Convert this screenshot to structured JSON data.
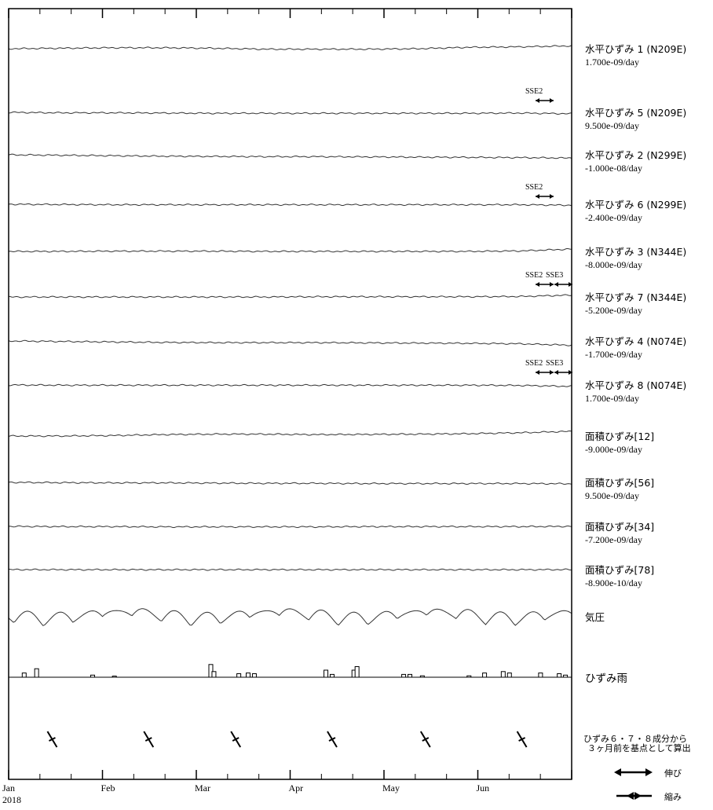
{
  "chart_data": {
    "type": "line",
    "x_axis": {
      "months": [
        "Jan",
        "Feb",
        "Mar",
        "Apr",
        "May",
        "Jun"
      ],
      "year": "2018",
      "range": [
        "2018-01-01",
        "2018-06-30"
      ]
    },
    "series": [
      {
        "name": "水平ひずみ 1 (N209E)",
        "rate": "1.700e-09/day",
        "trend": [
          0,
          0.1,
          0.2,
          0.2,
          0.1,
          -0.1,
          -0.1,
          -0.1,
          0,
          0.3,
          0.4,
          0.6
        ]
      },
      {
        "name": "水平ひずみ 5 (N209E)",
        "rate": "9.500e-09/day",
        "trend": [
          0,
          -0.1,
          -0.1,
          -0.15,
          -0.2,
          -0.2,
          -0.2,
          -0.2,
          -0.2,
          -0.2,
          -0.15,
          -0.3
        ]
      },
      {
        "name": "水平ひずみ 2 (N299E)",
        "rate": "-1.000e-08/day",
        "trend": [
          0,
          -0.1,
          -0.2,
          -0.3,
          -0.35,
          -0.4,
          -0.4,
          -0.45,
          -0.5,
          -0.55,
          -0.6,
          -0.7
        ]
      },
      {
        "name": "水平ひずみ 6 (N299E)",
        "rate": "-2.400e-09/day",
        "trend": [
          0,
          -0.05,
          -0.1,
          -0.1,
          -0.1,
          -0.1,
          -0.1,
          -0.1,
          -0.1,
          -0.1,
          -0.1,
          -0.2
        ]
      },
      {
        "name": "水平ひずみ 3 (N344E)",
        "rate": "-8.000e-09/day",
        "trend": [
          0,
          0,
          0.05,
          0.05,
          0.05,
          0,
          0,
          0,
          0,
          0,
          0.1,
          0.5
        ]
      },
      {
        "name": "水平ひずみ 7 (N344E)",
        "rate": "-5.200e-09/day",
        "trend": [
          0,
          0,
          0,
          0,
          0,
          0,
          0.05,
          0.05,
          0.05,
          0.05,
          0.1,
          0.4
        ]
      },
      {
        "name": "水平ひずみ 4 (N074E)",
        "rate": "-1.700e-09/day",
        "trend": [
          0,
          -0.1,
          -0.2,
          -0.3,
          -0.35,
          -0.35,
          -0.35,
          -0.4,
          -0.45,
          -0.5,
          -0.6,
          -0.9
        ]
      },
      {
        "name": "水平ひずみ 8 (N074E)",
        "rate": "1.700e-09/day",
        "trend": [
          0,
          -0.05,
          -0.05,
          -0.05,
          -0.05,
          -0.05,
          -0.05,
          -0.05,
          -0.05,
          -0.05,
          -0.1,
          -0.3
        ]
      },
      {
        "name": "面積ひずみ[12]",
        "rate": "-9.000e-09/day",
        "trend": [
          0,
          0,
          0.1,
          0.3,
          0.4,
          0.4,
          0.3,
          0.35,
          0.4,
          0.5,
          0.7,
          1.0
        ]
      },
      {
        "name": "面積ひずみ[56]",
        "rate": "9.500e-09/day",
        "trend": [
          0,
          -0.05,
          -0.1,
          -0.1,
          -0.15,
          -0.2,
          -0.2,
          -0.25,
          -0.25,
          -0.25,
          -0.25,
          -0.3
        ]
      },
      {
        "name": "面積ひずみ[34]",
        "rate": "-7.200e-09/day",
        "trend": [
          0,
          -0.05,
          -0.05,
          -0.1,
          -0.1,
          -0.1,
          -0.1,
          -0.05,
          -0.05,
          -0.05,
          -0.05,
          0
        ]
      },
      {
        "name": "面積ひずみ[78]",
        "rate": "-8.900e-10/day",
        "trend": [
          0,
          -0.02,
          -0.02,
          -0.02,
          -0.02,
          -0.02,
          -0.02,
          -0.02,
          -0.02,
          -0.02,
          -0.02,
          0
        ]
      },
      {
        "name": "気圧",
        "rate": "",
        "trend": [
          0,
          0,
          0,
          0,
          0,
          0,
          0,
          0,
          0,
          0,
          0,
          0
        ]
      }
    ],
    "rain": {
      "name": "ひずみ雨",
      "values": [
        {
          "x": "2018-01-06",
          "v": 0.3
        },
        {
          "x": "2018-01-10",
          "v": 0.6
        },
        {
          "x": "2018-01-28",
          "v": 0.15
        },
        {
          "x": "2018-02-04",
          "v": 0.08
        },
        {
          "x": "2018-03-07",
          "v": 0.9
        },
        {
          "x": "2018-03-08",
          "v": 0.4
        },
        {
          "x": "2018-03-16",
          "v": 0.25
        },
        {
          "x": "2018-03-19",
          "v": 0.3
        },
        {
          "x": "2018-03-21",
          "v": 0.25
        },
        {
          "x": "2018-04-13",
          "v": 0.5
        },
        {
          "x": "2018-04-15",
          "v": 0.2
        },
        {
          "x": "2018-04-22",
          "v": 0.5
        },
        {
          "x": "2018-04-23",
          "v": 0.75
        },
        {
          "x": "2018-05-08",
          "v": 0.2
        },
        {
          "x": "2018-05-10",
          "v": 0.2
        },
        {
          "x": "2018-05-14",
          "v": 0.1
        },
        {
          "x": "2018-05-29",
          "v": 0.1
        },
        {
          "x": "2018-06-03",
          "v": 0.3
        },
        {
          "x": "2018-06-09",
          "v": 0.4
        },
        {
          "x": "2018-06-11",
          "v": 0.3
        },
        {
          "x": "2018-06-21",
          "v": 0.3
        },
        {
          "x": "2018-06-27",
          "v": 0.25
        },
        {
          "x": "2018-06-29",
          "v": 0.15
        }
      ]
    },
    "sse_annotations": [
      {
        "above_series": 1,
        "labels": [
          "SSE2"
        ]
      },
      {
        "above_series": 3,
        "labels": [
          "SSE2"
        ]
      },
      {
        "above_series": 5,
        "labels": [
          "SSE2",
          "SSE3"
        ]
      },
      {
        "above_series": 7,
        "labels": [
          "SSE2",
          "SSE3"
        ]
      }
    ],
    "principal_strain_dates": [
      "2018-01-15",
      "2018-02-15",
      "2018-03-15",
      "2018-04-15",
      "2018-05-15",
      "2018-06-15"
    ],
    "principal_strain_note": [
      "ひずみ６・７・８成分から",
      "３ヶ月前を基点として算出"
    ],
    "legend": {
      "extension": "伸び",
      "contraction": "縮み"
    }
  }
}
